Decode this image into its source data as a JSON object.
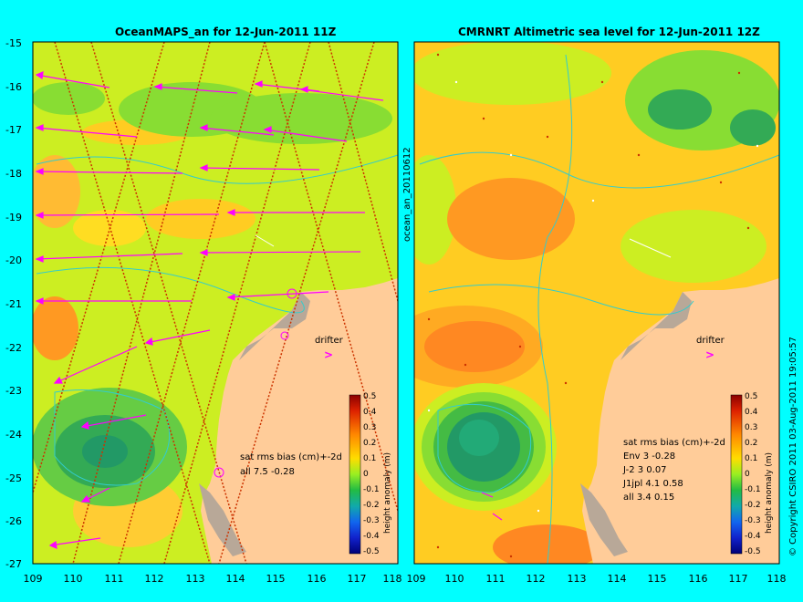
{
  "left_panel": {
    "title": "OceanMAPS_an for 12-Jun-2011 11Z",
    "y_ticks": [
      "-15",
      "-16",
      "-17",
      "-18",
      "-19",
      "-20",
      "-21",
      "-22",
      "-23",
      "-24",
      "-25",
      "-26",
      "-27"
    ],
    "x_ticks": [
      "109",
      "110",
      "111",
      "112",
      "113",
      "114",
      "115",
      "116",
      "117",
      "118"
    ],
    "drifter_label": "drifter",
    "stats_lines": [
      "sat rms bias (cm)+-2d",
      "all 7.5 -0.28"
    ],
    "colorbar_label": "height anomaly (m)",
    "colorbar_ticks": [
      "0.5",
      "0.4",
      "0.3",
      "0.2",
      "0.1",
      "0",
      "-0.1",
      "-0.2",
      "-0.3",
      "-0.4",
      "-0.5"
    ]
  },
  "right_panel": {
    "title": "CMRNRT Altimetric sea level  for 12-Jun-2011 12Z",
    "x_ticks": [
      "109",
      "110",
      "111",
      "112",
      "113",
      "114",
      "115",
      "116",
      "117",
      "118"
    ],
    "drifter_label": "drifter",
    "stats_lines": [
      "sat rms bias (cm)+-2d",
      "Env   3 -0.28",
      "J-2   3 0.07",
      "J1jpl 4.1 0.58",
      "all 3.4 0.15"
    ],
    "colorbar_label": "height anomaly (m)",
    "colorbar_ticks": [
      "0.5",
      "0.4",
      "0.3",
      "0.2",
      "0.1",
      "0",
      "-0.1",
      "-0.2",
      "-0.3",
      "-0.4",
      "-0.5"
    ]
  },
  "side_label": "ocean_an_20110612",
  "copyright": "© Copyright CSIRO 2011   03-Aug-2011 19:05:57",
  "colors": {
    "background": "#00ffff",
    "land": "#ffcc99",
    "land_shade": "#b8a898",
    "arrow": "#ff00ff",
    "track": "#cc3300",
    "contour": "#33cccc",
    "green": "#66cc33",
    "yellow_green": "#ccee22",
    "orange": "#ffaa22"
  }
}
